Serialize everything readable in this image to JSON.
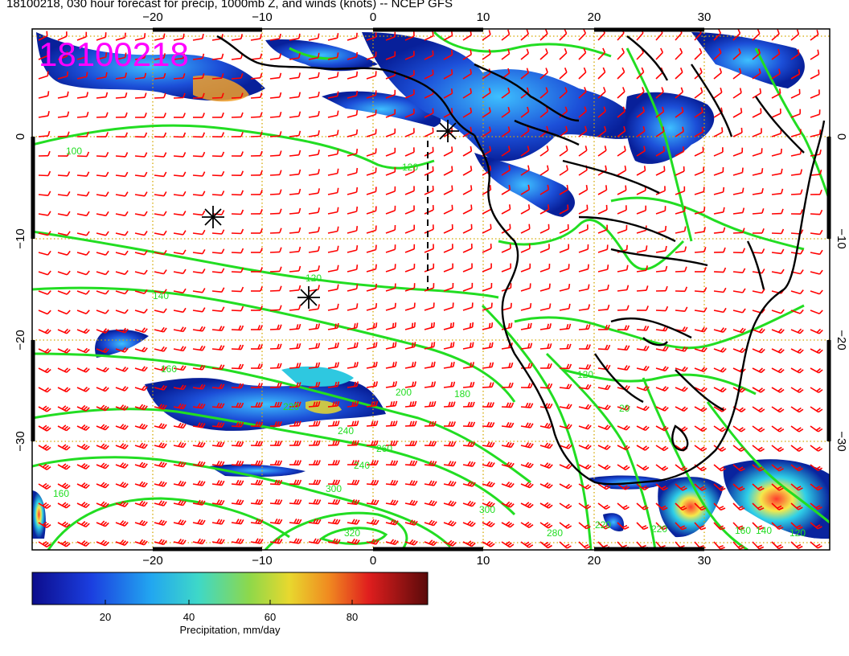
{
  "title": "18100218, 030 hour forecast for precip, 1000mb Z, and winds (knots) -- NCEP GFS",
  "stamp": "18100218",
  "lon_ticks": [
    "−20",
    "−10",
    "0",
    "10",
    "20",
    "30"
  ],
  "lat_ticks": [
    "0",
    "−10",
    "−20",
    "−30"
  ],
  "contour_labels": [
    "100",
    "120",
    "140",
    "160",
    "200",
    "220",
    "240",
    "260",
    "280",
    "300",
    "320",
    "180",
    "140",
    "120",
    "160",
    "20"
  ],
  "colorbar": {
    "ticks": [
      "20",
      "40",
      "60",
      "80"
    ],
    "label": "Precipitation, mm/day"
  },
  "colors": {
    "contour": "#22dd22",
    "barb": "#ff0000",
    "coast": "#000000",
    "stamp": "#ff00ff",
    "grid": "#d4a800"
  }
}
